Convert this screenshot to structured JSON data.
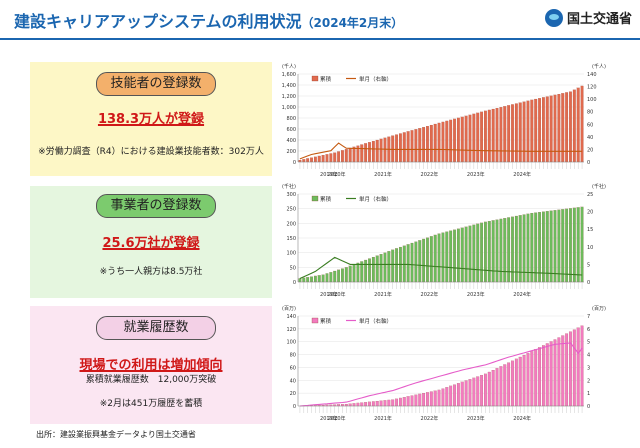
{
  "header": {
    "title": "建設キャリアアップシステムの利用状況",
    "subtitle": "（2024年2月末）",
    "logo_text": "国土交通省",
    "accent_color": "#1b66b0"
  },
  "panels": [
    {
      "pill": "技能者の登録数",
      "headline": "138.3万人が登録",
      "notes": [
        "※労働力調査（R4）における建設業技能者数：302万人"
      ]
    },
    {
      "pill": "事業者の登録数",
      "headline": "25.6万社が登録",
      "notes": [
        "※うち一人親方は8.5万社"
      ]
    },
    {
      "pill": "就業履歴数",
      "headline": "現場での利用は増加傾向",
      "notes": [
        "累積就業履歴数　12,000万突破",
        "※2月は451万履歴を蓄積"
      ]
    }
  ],
  "source": "出所：建設業振興基金データより国土交通省",
  "chart_data": [
    {
      "type": "bar",
      "left_unit": "(千人)",
      "right_unit": "(千人)",
      "legend": [
        "累積",
        "単月（右軸）"
      ],
      "legend_position": "top-left",
      "bar_color": "#e06a4e",
      "line_color": "#c55a11",
      "years": [
        "2019年",
        "2020年",
        "2021年",
        "2022年",
        "2023年",
        "2024年"
      ],
      "ylim_left": [
        0,
        1600
      ],
      "yticks_left": [
        0,
        200,
        400,
        600,
        800,
        1000,
        1200,
        1400,
        1600
      ],
      "ylim_right": [
        0,
        140
      ],
      "yticks_right": [
        0,
        20,
        40,
        60,
        80,
        100,
        120,
        140
      ],
      "cumulative": [
        {
          "x": 0,
          "y": 35
        },
        {
          "x": 9,
          "y": 170
        },
        {
          "x": 18,
          "y": 360
        },
        {
          "x": 24,
          "y": 480
        },
        {
          "x": 36,
          "y": 710
        },
        {
          "x": 48,
          "y": 930
        },
        {
          "x": 60,
          "y": 1130
        },
        {
          "x": 70,
          "y": 1280
        },
        {
          "x": 73,
          "y": 1383
        }
      ],
      "monthly": [
        {
          "x": 0,
          "y": 5
        },
        {
          "x": 3,
          "y": 12
        },
        {
          "x": 8,
          "y": 18
        },
        {
          "x": 10,
          "y": 30
        },
        {
          "x": 12,
          "y": 22
        },
        {
          "x": 18,
          "y": 21
        },
        {
          "x": 24,
          "y": 20
        },
        {
          "x": 36,
          "y": 20
        },
        {
          "x": 48,
          "y": 18
        },
        {
          "x": 60,
          "y": 17
        },
        {
          "x": 73,
          "y": 17
        }
      ]
    },
    {
      "type": "bar",
      "left_unit": "(千社)",
      "right_unit": "(千社)",
      "legend": [
        "累積",
        "単月（右軸）"
      ],
      "legend_position": "top-left",
      "bar_color": "#6dbb5c",
      "line_color": "#3a7d22",
      "years": [
        "2019年",
        "2020年",
        "2021年",
        "2022年",
        "2023年",
        "2024年"
      ],
      "ylim_left": [
        0,
        300
      ],
      "yticks_left": [
        0,
        50,
        100,
        150,
        200,
        250,
        300
      ],
      "ylim_right": [
        0,
        25
      ],
      "yticks_right": [
        0,
        5,
        10,
        15,
        20,
        25
      ],
      "cumulative": [
        {
          "x": 0,
          "y": 12
        },
        {
          "x": 6,
          "y": 25
        },
        {
          "x": 12,
          "y": 50
        },
        {
          "x": 24,
          "y": 110
        },
        {
          "x": 36,
          "y": 165
        },
        {
          "x": 48,
          "y": 205
        },
        {
          "x": 60,
          "y": 235
        },
        {
          "x": 73,
          "y": 256
        }
      ],
      "monthly": [
        {
          "x": 0,
          "y": 1
        },
        {
          "x": 4,
          "y": 3
        },
        {
          "x": 9,
          "y": 7
        },
        {
          "x": 13,
          "y": 5
        },
        {
          "x": 20,
          "y": 5
        },
        {
          "x": 28,
          "y": 5
        },
        {
          "x": 40,
          "y": 4
        },
        {
          "x": 52,
          "y": 3
        },
        {
          "x": 64,
          "y": 2.5
        },
        {
          "x": 73,
          "y": 2
        }
      ]
    },
    {
      "type": "bar",
      "left_unit": "(百万)",
      "right_unit": "(百万)",
      "legend": [
        "累積",
        "単月（右軸）"
      ],
      "legend_position": "top-left",
      "bar_color": "#f27bbf",
      "line_color": "#e55cc9",
      "years": [
        "2019年",
        "2020年",
        "2021年",
        "2022年",
        "2023年",
        "2024年"
      ],
      "ylim_left": [
        0,
        140
      ],
      "yticks_left": [
        0,
        20,
        40,
        60,
        80,
        100,
        120,
        140
      ],
      "ylim_right": [
        0,
        7
      ],
      "yticks_right": [
        0,
        1,
        2,
        3,
        4,
        5,
        6,
        7
      ],
      "cumulative": [
        {
          "x": 0,
          "y": 0
        },
        {
          "x": 12,
          "y": 3
        },
        {
          "x": 24,
          "y": 10
        },
        {
          "x": 36,
          "y": 25
        },
        {
          "x": 48,
          "y": 50
        },
        {
          "x": 60,
          "y": 85
        },
        {
          "x": 73,
          "y": 125
        }
      ],
      "monthly": [
        {
          "x": 0,
          "y": 0
        },
        {
          "x": 12,
          "y": 0.3
        },
        {
          "x": 18,
          "y": 0.8
        },
        {
          "x": 24,
          "y": 1.2
        },
        {
          "x": 30,
          "y": 1.8
        },
        {
          "x": 36,
          "y": 2.3
        },
        {
          "x": 42,
          "y": 2.8
        },
        {
          "x": 48,
          "y": 3.2
        },
        {
          "x": 54,
          "y": 3.8
        },
        {
          "x": 60,
          "y": 4.3
        },
        {
          "x": 66,
          "y": 4.8
        },
        {
          "x": 70,
          "y": 4.9
        },
        {
          "x": 72,
          "y": 4.1
        },
        {
          "x": 73,
          "y": 4.51
        }
      ]
    }
  ]
}
